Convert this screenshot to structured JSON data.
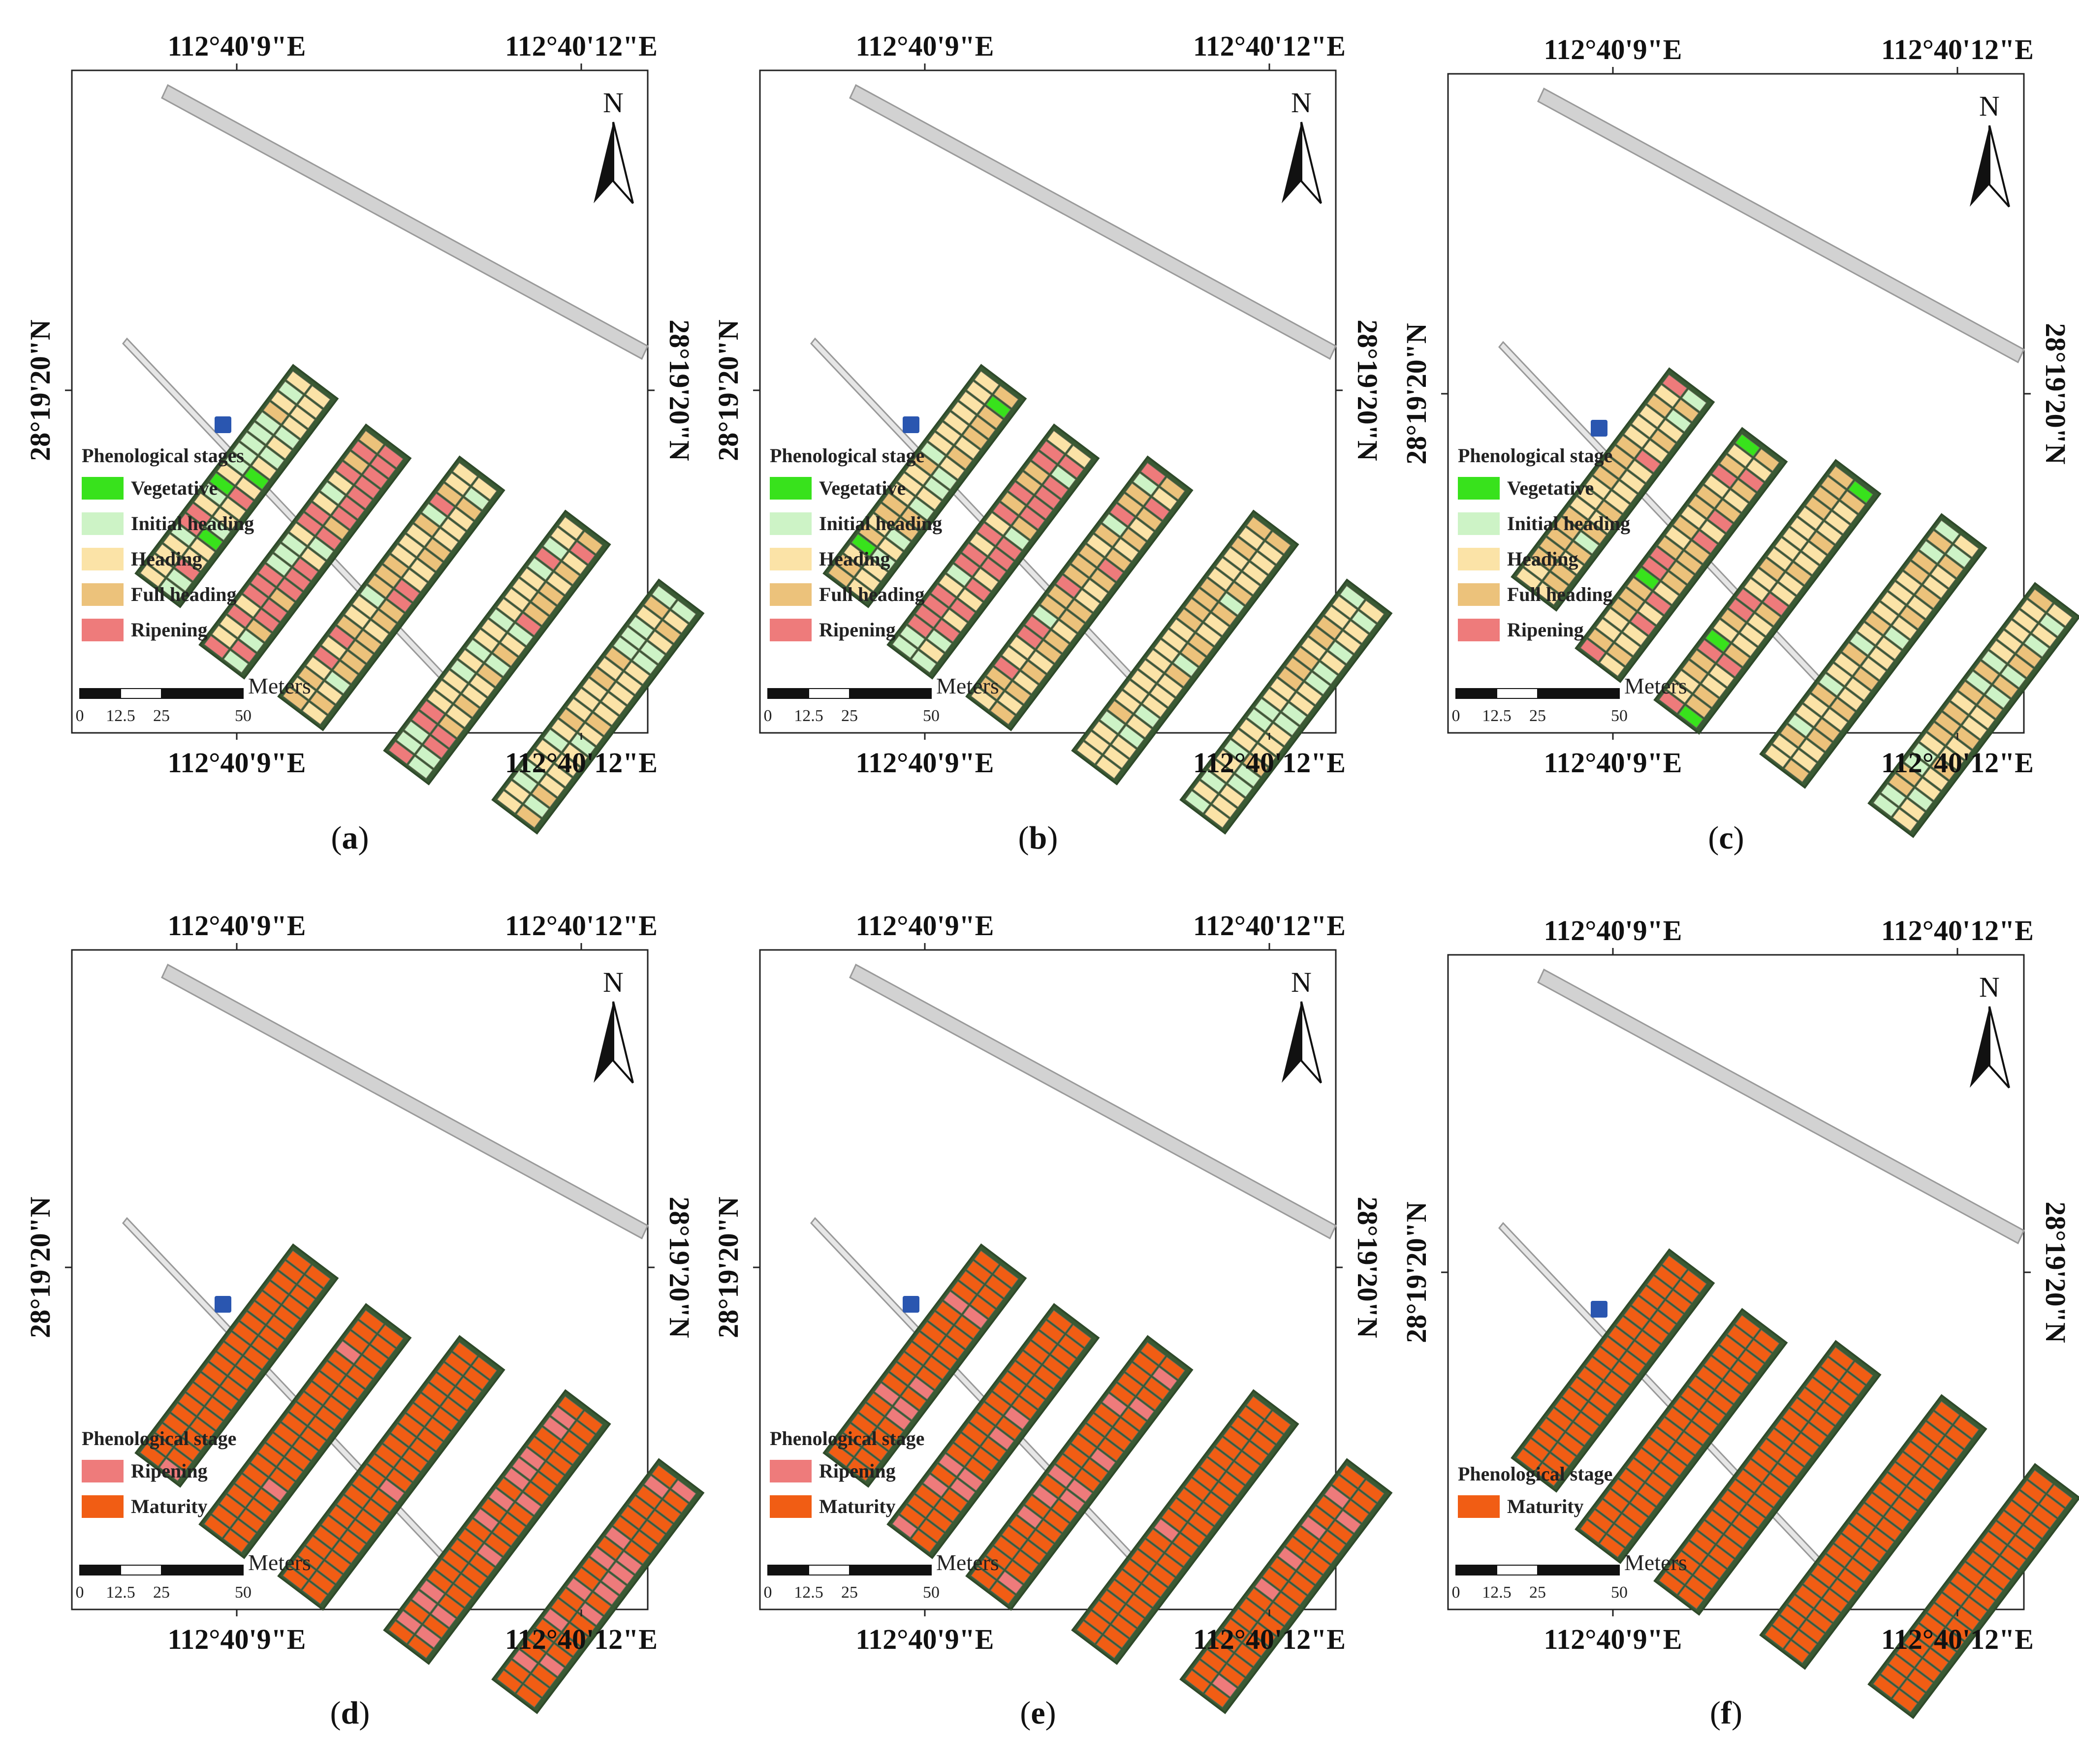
{
  "figure": {
    "lon_labels": [
      "112°40'9\"E",
      "112°40'12\"E"
    ],
    "lat_label": "28°19'20\"N",
    "north_label": "N",
    "scale": {
      "unit": "Meters",
      "ticks": [
        "0",
        "12.5",
        "25",
        "50"
      ]
    },
    "colors": {
      "vegetative": "#38e21c",
      "initial_heading": "#cdf3c6",
      "heading": "#fbe3a7",
      "full_heading": "#ecc27b",
      "ripening": "#ee7b7b",
      "maturity": "#f15d14",
      "road": "#d2d2d2",
      "vegetation": "#3a5a34",
      "water": "#2a56b0"
    },
    "panels": [
      {
        "id": "a",
        "caption": "a",
        "legend_title": "Phenological stages",
        "legend": [
          {
            "label": "Vegetative",
            "color": "#38e21c"
          },
          {
            "label": "Initial heading",
            "color": "#cdf3c6"
          },
          {
            "label": "Heading",
            "color": "#fbe3a7"
          },
          {
            "label": "Full heading",
            "color": "#ecc27b"
          },
          {
            "label": "Ripening",
            "color": "#ee7b7b"
          }
        ]
      },
      {
        "id": "b",
        "caption": "b",
        "legend_title": "Phenological stage",
        "legend": [
          {
            "label": "Vegetative",
            "color": "#38e21c"
          },
          {
            "label": "Initial heading",
            "color": "#cdf3c6"
          },
          {
            "label": "Heading",
            "color": "#fbe3a7"
          },
          {
            "label": "Full heading",
            "color": "#ecc27b"
          },
          {
            "label": "Ripening",
            "color": "#ee7b7b"
          }
        ]
      },
      {
        "id": "c",
        "caption": "c",
        "legend_title": "Phenological stage",
        "legend": [
          {
            "label": "Vegetative",
            "color": "#38e21c"
          },
          {
            "label": "Initial heading",
            "color": "#cdf3c6"
          },
          {
            "label": "Heading",
            "color": "#fbe3a7"
          },
          {
            "label": "Full heading",
            "color": "#ecc27b"
          },
          {
            "label": "Ripening",
            "color": "#ee7b7b"
          }
        ]
      },
      {
        "id": "d",
        "caption": "d",
        "legend_title": "Phenological stage",
        "legend": [
          {
            "label": "Ripening",
            "color": "#ee7b7b"
          },
          {
            "label": "Maturity",
            "color": "#f15d14"
          }
        ]
      },
      {
        "id": "e",
        "caption": "e",
        "legend_title": "Phenological stage",
        "legend": [
          {
            "label": "Ripening",
            "color": "#ee7b7b"
          },
          {
            "label": "Maturity",
            "color": "#f15d14"
          }
        ]
      },
      {
        "id": "f",
        "caption": "f",
        "legend_title": "Phenological stage",
        "legend": [
          {
            "label": "Maturity",
            "color": "#f15d14"
          }
        ]
      }
    ]
  }
}
